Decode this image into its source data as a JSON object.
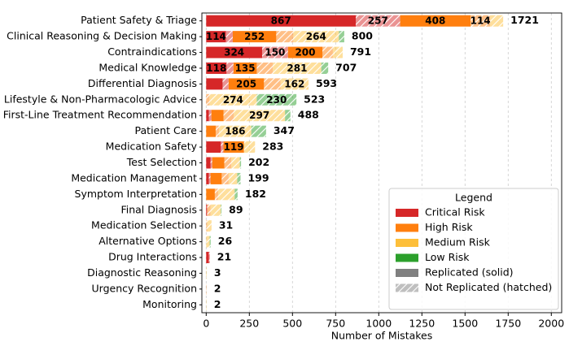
{
  "chart_data": {
    "type": "stacked-barh",
    "x_label": "Number of Mistakes",
    "categories": [
      "Patient Safety & Triage",
      "Clinical Reasoning & Decision Making",
      "Contraindications",
      "Medical Knowledge",
      "Differential Diagnosis",
      "Lifestyle & Non-Pharmacologic Advice",
      "First-Line Treatment Recommendation",
      "Patient Care",
      "Medication Safety",
      "Test Selection",
      "Medication Management",
      "Symptom Interpretation",
      "Final Diagnosis",
      "Medication Selection",
      "Alternative Options",
      "Drug Interactions",
      "Diagnostic Reasoning",
      "Urgency Recognition",
      "Monitoring"
    ],
    "series": [
      {
        "name": "Critical Risk",
        "color": "#d62728",
        "replicated": [
          867,
          114,
          324,
          118,
          95,
          0,
          15,
          0,
          85,
          25,
          15,
          0,
          5,
          0,
          0,
          15,
          0,
          0,
          0
        ],
        "not_replicated": [
          257,
          40,
          150,
          40,
          35,
          0,
          15,
          0,
          15,
          10,
          10,
          0,
          0,
          0,
          0,
          6,
          0,
          0,
          0
        ]
      },
      {
        "name": "High Risk",
        "color": "#ff7f0e",
        "replicated": [
          408,
          252,
          200,
          135,
          205,
          0,
          70,
          55,
          119,
          70,
          65,
          50,
          0,
          0,
          0,
          0,
          0,
          0,
          0
        ],
        "not_replicated": [
          114,
          99,
          60,
          93,
          96,
          19,
          60,
          20,
          0,
          40,
          40,
          20,
          20,
          6,
          0,
          0,
          0,
          2,
          0
        ]
      },
      {
        "name": "Medium Risk",
        "color": "#fdbf3a",
        "replicated": [
          0,
          0,
          0,
          0,
          0,
          0,
          0,
          0,
          0,
          0,
          0,
          0,
          0,
          0,
          0,
          0,
          0,
          0,
          0
        ],
        "not_replicated": [
          75,
          264,
          57,
          281,
          162,
          274,
          297,
          186,
          64,
          50,
          50,
          95,
          60,
          25,
          20,
          0,
          3,
          0,
          2
        ]
      },
      {
        "name": "Low Risk",
        "color": "#2ca02c",
        "replicated": [
          0,
          0,
          0,
          0,
          0,
          0,
          0,
          0,
          0,
          0,
          0,
          0,
          0,
          0,
          0,
          0,
          0,
          0,
          0
        ],
        "not_replicated": [
          0,
          31,
          0,
          40,
          0,
          230,
          31,
          86,
          0,
          7,
          19,
          17,
          4,
          0,
          6,
          0,
          0,
          0,
          0
        ]
      }
    ],
    "totals": [
      1721,
      800,
      791,
      707,
      593,
      523,
      488,
      347,
      283,
      202,
      199,
      182,
      89,
      31,
      26,
      21,
      3,
      2,
      2
    ],
    "label_min": 100,
    "xlim": [
      -25,
      2060
    ],
    "xticks": [
      0,
      250,
      500,
      750,
      1000,
      1250,
      1500,
      1750,
      2000
    ],
    "grid": true,
    "legend": {
      "title": "Legend",
      "position": "lower right",
      "solid": "Replicated (solid)",
      "hatched": "Not Replicated (hatched)",
      "style_color": "#808080"
    }
  }
}
